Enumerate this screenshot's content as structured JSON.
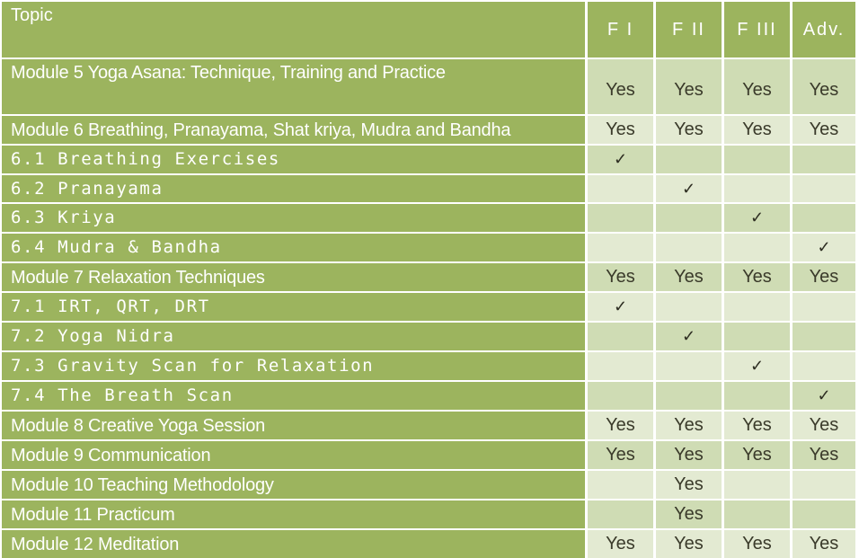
{
  "header": {
    "topic": "Topic",
    "columns": [
      "F I",
      "F II",
      "F III",
      "Adv."
    ]
  },
  "rows": [
    {
      "topic": "Module 5 Yoga Asana: Technique, Training and Practice",
      "kind": "module",
      "cells": [
        "Yes",
        "Yes",
        "Yes",
        "Yes"
      ]
    },
    {
      "topic": "Module 6 Breathing, Pranayama, Shat kriya, Mudra and Bandha",
      "kind": "module",
      "cells": [
        "Yes",
        "Yes",
        "Yes",
        "Yes"
      ]
    },
    {
      "topic": "6.1 Breathing Exercises",
      "kind": "sub",
      "cells": [
        "✓",
        "",
        "",
        ""
      ]
    },
    {
      "topic": "6.2 Pranayama",
      "kind": "sub",
      "cells": [
        "",
        "✓",
        "",
        ""
      ]
    },
    {
      "topic": "6.3 Kriya",
      "kind": "sub",
      "cells": [
        "",
        "",
        "✓",
        ""
      ]
    },
    {
      "topic": "6.4 Mudra & Bandha",
      "kind": "sub",
      "cells": [
        "",
        "",
        "",
        "✓"
      ]
    },
    {
      "topic": "Module 7 Relaxation Techniques",
      "kind": "module",
      "cells": [
        "Yes",
        "Yes",
        "Yes",
        "Yes"
      ]
    },
    {
      "topic": "7.1 IRT, QRT, DRT",
      "kind": "sub",
      "cells": [
        "✓",
        "",
        "",
        ""
      ]
    },
    {
      "topic": "7.2 Yoga Nidra",
      "kind": "sub",
      "cells": [
        "",
        "✓",
        "",
        ""
      ]
    },
    {
      "topic": "7.3 Gravity Scan for Relaxation",
      "kind": "sub",
      "cells": [
        "",
        "",
        "✓",
        ""
      ]
    },
    {
      "topic": "7.4 The Breath Scan",
      "kind": "sub",
      "cells": [
        "",
        "",
        "",
        "✓"
      ]
    },
    {
      "topic": "Module 8 Creative Yoga Session",
      "kind": "module",
      "cells": [
        "Yes",
        "Yes",
        "Yes",
        "Yes"
      ]
    },
    {
      "topic": "Module 9 Communication",
      "kind": "module",
      "cells": [
        "Yes",
        "Yes",
        "Yes",
        "Yes"
      ]
    },
    {
      "topic": "Module 10 Teaching Methodology",
      "kind": "module",
      "cells": [
        "",
        "Yes",
        "",
        ""
      ]
    },
    {
      "topic": "Module 11 Practicum",
      "kind": "module",
      "cells": [
        "",
        "Yes",
        "",
        ""
      ]
    },
    {
      "topic": "Module 12 Meditation",
      "kind": "module",
      "cells": [
        "Yes",
        "Yes",
        "Yes",
        "Yes"
      ]
    }
  ]
}
